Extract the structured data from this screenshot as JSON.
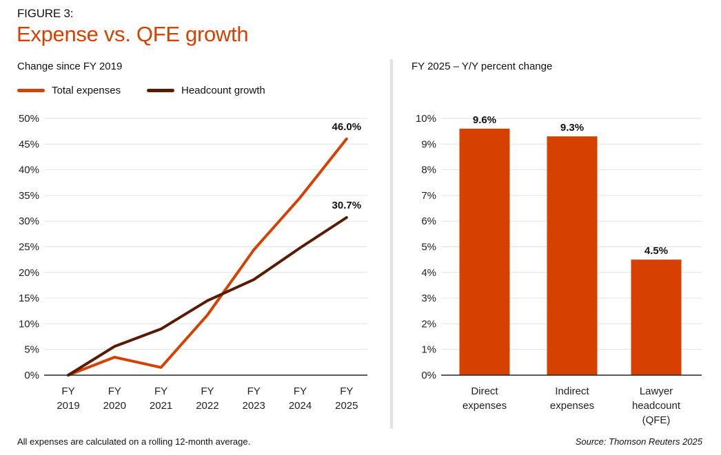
{
  "header": {
    "figure_label": "FIGURE 3:",
    "title": "Expense vs. QFE growth"
  },
  "colors": {
    "accent": "#D64000",
    "headcount": "#5A1A00",
    "gridline": "#e2e2e2",
    "axis": "#222222"
  },
  "footer": {
    "note": "All expenses are calculated on a rolling 12-month average.",
    "source": "Source: Thomson Reuters 2025"
  },
  "chart_data": [
    {
      "type": "line",
      "title": "Change since FY 2019",
      "xlabel": "",
      "ylabel": "",
      "categories": [
        [
          "FY",
          "2019"
        ],
        [
          "FY",
          "2020"
        ],
        [
          "FY",
          "2021"
        ],
        [
          "FY",
          "2022"
        ],
        [
          "FY",
          "2023"
        ],
        [
          "FY",
          "2024"
        ],
        [
          "FY",
          "2025"
        ]
      ],
      "ylim": [
        0,
        50
      ],
      "yticks": [
        0,
        5,
        10,
        15,
        20,
        25,
        30,
        35,
        40,
        45,
        50
      ],
      "ytick_labels": [
        "0%",
        "5%",
        "10%",
        "15%",
        "20%",
        "25%",
        "30%",
        "35%",
        "40%",
        "45%",
        "50%"
      ],
      "grid": true,
      "legend_position": "top-left",
      "series": [
        {
          "name": "Total expenses",
          "color": "#D64000",
          "values": [
            0,
            3.5,
            1.5,
            11.7,
            24.4,
            34.6,
            46.0
          ],
          "end_label": "46.0%"
        },
        {
          "name": "Headcount growth",
          "color": "#5A1A00",
          "values": [
            0,
            5.6,
            9.0,
            14.5,
            18.6,
            24.8,
            30.7
          ],
          "end_label": "30.7%"
        }
      ]
    },
    {
      "type": "bar",
      "title": "FY 2025 – Y/Y percent change",
      "xlabel": "",
      "ylabel": "",
      "categories": [
        [
          "Direct",
          "expenses"
        ],
        [
          "Indirect",
          "expenses"
        ],
        [
          "Lawyer",
          "headcount",
          "(QFE)"
        ]
      ],
      "values": [
        9.6,
        9.3,
        4.5
      ],
      "data_labels": [
        "9.6%",
        "9.3%",
        "4.5%"
      ],
      "ylim": [
        0,
        10
      ],
      "yticks": [
        0,
        1,
        2,
        3,
        4,
        5,
        6,
        7,
        8,
        9,
        10
      ],
      "ytick_labels": [
        "0%",
        "1%",
        "2%",
        "3%",
        "4%",
        "5%",
        "6%",
        "7%",
        "8%",
        "9%",
        "10%"
      ],
      "grid": true,
      "color": "#D64000"
    }
  ]
}
